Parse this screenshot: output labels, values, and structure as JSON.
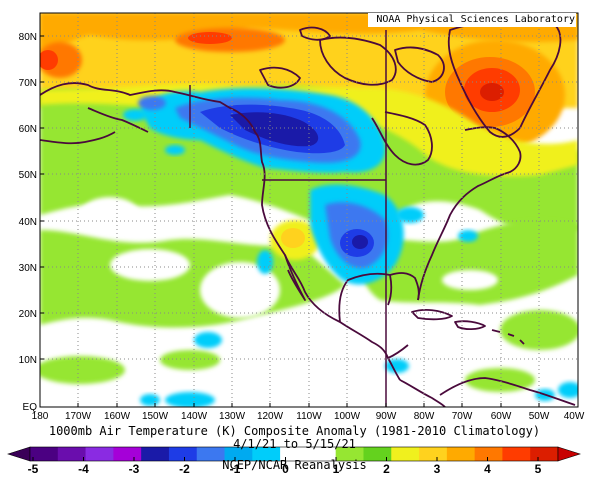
{
  "credit": "NOAA Physical Sciences Laboratory",
  "caption": {
    "line1": "1000mb Air Temperature (K) Composite Anomaly (1981-2010 Climatology)",
    "line2": "4/1/21  to 5/15/21",
    "line3": "NCEP/NCAR Reanalysis"
  },
  "map": {
    "projection": "equirectangular",
    "region": "North America and surrounding Pacific/Atlantic",
    "lon_range": [
      -180,
      -40
    ],
    "lat_range": [
      0,
      85
    ],
    "lat_tick_labels": [
      "EQ",
      "10N",
      "20N",
      "30N",
      "40N",
      "50N",
      "60N",
      "70N",
      "80N"
    ],
    "lon_tick_labels": [
      "180",
      "170W",
      "160W",
      "150W",
      "140W",
      "130W",
      "120W",
      "110W",
      "100W",
      "90W",
      "80W",
      "70W",
      "60W",
      "50W",
      "40W"
    ],
    "grid": "dotted, every 10 degrees",
    "highlighted_lines": [
      "90W meridian",
      "49N US-Canada border",
      "141W Alaska border"
    ]
  },
  "colorbar": {
    "tick_labels": [
      "-5",
      "-4",
      "-3",
      "-2",
      "-1",
      "0",
      "1",
      "2",
      "3",
      "4",
      "5"
    ],
    "colors": [
      "#4b0082",
      "#6a0dad",
      "#8a2be2",
      "#a500d8",
      "#1a1aa8",
      "#1e3ce6",
      "#3c78f0",
      "#00aaf0",
      "#00cdfa",
      "#ffffff",
      "#ffffff",
      "#96e632",
      "#64d21e",
      "#f0f01e",
      "#ffd21e",
      "#ffaa00",
      "#ff7800",
      "#ff3c00",
      "#dc1e00"
    ]
  },
  "anomaly_regions": [
    {
      "label": "cold core over western Canada",
      "anomaly_k": -3
    },
    {
      "label": "cold anomaly over central/southern US",
      "anomaly_k": -2
    },
    {
      "label": "warm anomaly over Greenland / Labrador Sea",
      "anomaly_k": 4
    },
    {
      "label": "warm anomaly over Arctic north of Siberia",
      "anomaly_k": 4
    },
    {
      "label": "warm anomaly over US southwest",
      "anomaly_k": 2
    }
  ]
}
